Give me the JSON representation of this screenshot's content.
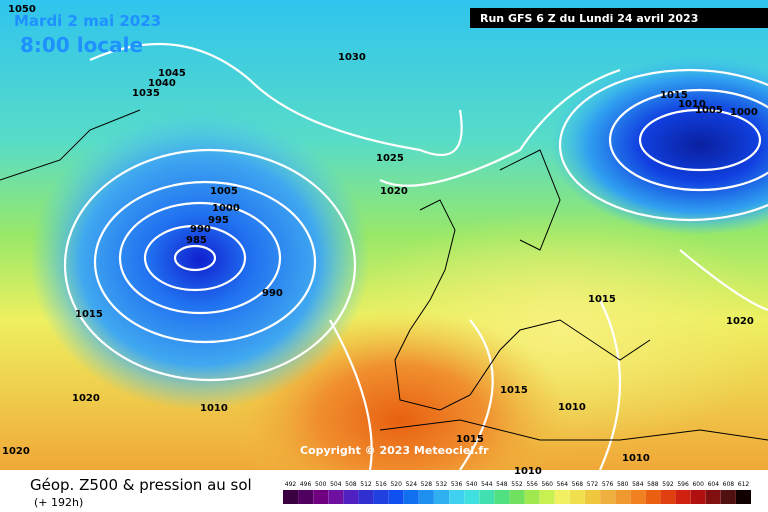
{
  "header": {
    "date": "Mardi 2 mai 2023",
    "time": "8:00 locale",
    "run": "Run GFS 6 Z du Lundi 24 avril 2023"
  },
  "isobar_labels": [
    "1050",
    "1045",
    "1040",
    "1035",
    "1030",
    "1025",
    "1020",
    "1005",
    "1000",
    "995",
    "990",
    "985",
    "990",
    "1015",
    "1020",
    "1010",
    "1015",
    "1010",
    "1005",
    "1000",
    "1015",
    "1020",
    "1015",
    "1010",
    "1015",
    "1010",
    "1010",
    "1020"
  ],
  "copyright": "Copyright © 2023 Meteociel.fr",
  "footer": {
    "title": "Géop. Z500 & pression au sol",
    "lead": "(+ 192h)"
  },
  "legend_values": [
    492,
    496,
    500,
    504,
    508,
    512,
    516,
    520,
    524,
    528,
    532,
    536,
    540,
    544,
    548,
    552,
    556,
    560,
    564,
    568,
    572,
    576,
    580,
    584,
    588,
    592,
    596,
    600,
    604,
    608,
    612
  ]
}
